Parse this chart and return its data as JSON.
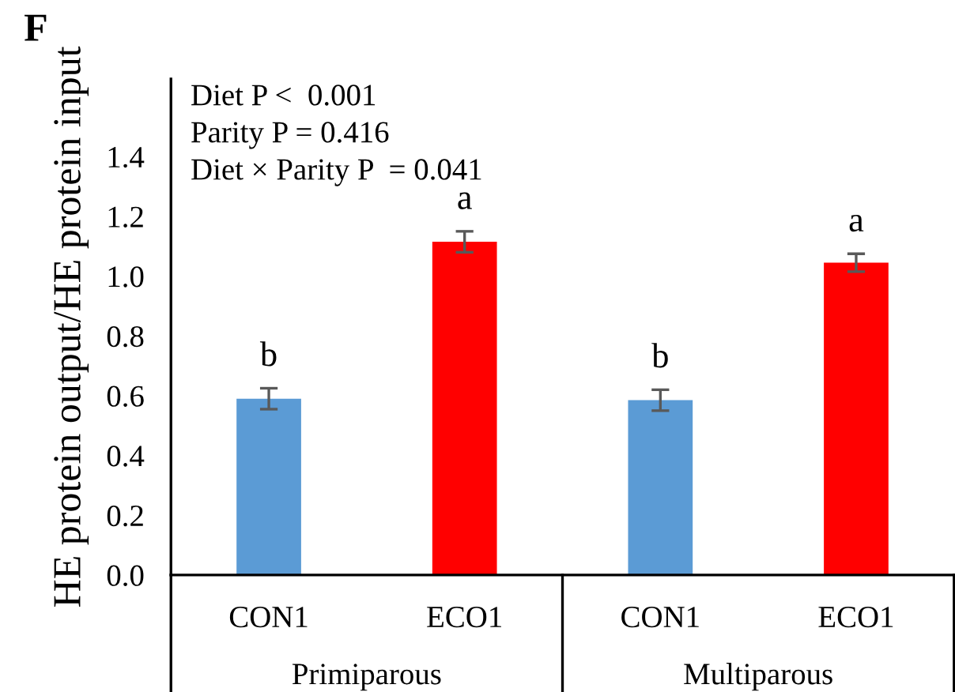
{
  "chart_data": {
    "type": "bar",
    "title": "F",
    "ylabel": "HE protein output/HE protein input",
    "categories": [
      "CON1",
      "ECO1",
      "CON1",
      "ECO1"
    ],
    "values": [
      0.59,
      1.115,
      0.585,
      1.045
    ],
    "colors": [
      "#5b9bd5",
      "#ff0000",
      "#5b9bd5",
      "#ff0000"
    ],
    "errors": [
      0.035,
      0.035,
      0.035,
      0.03
    ],
    "value_labels": [
      "b",
      "a",
      "b",
      "a"
    ],
    "ylim": [
      0,
      1.66
    ],
    "yticks": [
      {
        "value": 0,
        "label": "0.0"
      },
      {
        "value": 0.2,
        "label": "0.2"
      },
      {
        "value": 0.4,
        "label": "0.4"
      },
      {
        "value": 0.6,
        "label": "0.6"
      },
      {
        "value": 0.8,
        "label": "0.8"
      },
      {
        "value": 1.0,
        "label": "1.0"
      },
      {
        "value": 1.2,
        "label": "1.2"
      },
      {
        "value": 1.4,
        "label": "1.4"
      }
    ],
    "annotations": [
      "Diet P <  0.001",
      "Parity P = 0.416",
      "Diet × Parity P  = 0.041",
      "Primiparous",
      "Multiparous"
    ],
    "grid": false,
    "legend": false
  }
}
